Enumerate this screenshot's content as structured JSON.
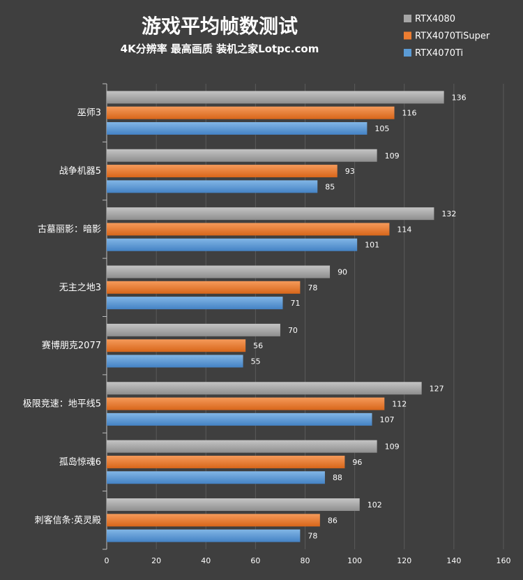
{
  "chart_data": {
    "type": "bar",
    "orientation": "horizontal",
    "title": "游戏平均帧数测试",
    "subtitle": "4K分辨率 最高画质 装机之家Lotpc.com",
    "categories": [
      "巫师3",
      "战争机器5",
      "古墓丽影：暗影",
      "无主之地3",
      "赛博朋克2077",
      "极限竞速：地平线5",
      "孤岛惊魂6",
      "刺客信条:英灵殿"
    ],
    "series": [
      {
        "name": "RTX4080",
        "color": "#a6a6a6",
        "values": [
          136,
          109,
          132,
          90,
          70,
          127,
          109,
          102
        ]
      },
      {
        "name": "RTX4070TiSuper",
        "color": "#ed7d31",
        "values": [
          116,
          93,
          114,
          78,
          56,
          112,
          96,
          86
        ]
      },
      {
        "name": "RTX4070Ti",
        "color": "#5b9bd5",
        "values": [
          105,
          85,
          101,
          71,
          55,
          107,
          88,
          78
        ]
      }
    ],
    "xlim": [
      0,
      160
    ],
    "xticks": [
      0,
      20,
      40,
      60,
      80,
      100,
      120,
      140,
      160
    ],
    "grid": true,
    "legend": "top-right"
  }
}
